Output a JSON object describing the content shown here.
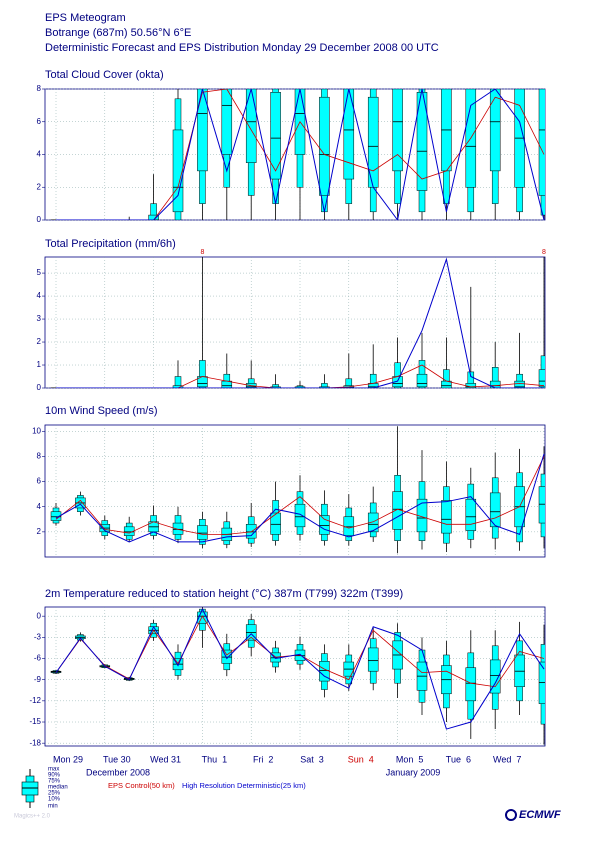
{
  "header": {
    "title": "EPS Meteogram",
    "location": "Botrange (687m) 50.56°N 6°E",
    "subtitle": "Deterministic Forecast and EPS Distribution Monday 29 December 2008 00 UTC"
  },
  "chart_data": [
    {
      "type": "boxplot",
      "title": "Total Cloud Cover (okta)",
      "ylim": [
        0,
        8
      ],
      "yticks": [
        0,
        2,
        4,
        6,
        8
      ],
      "grid": true,
      "boxes": [
        [
          0,
          0,
          0,
          0,
          0,
          0,
          0
        ],
        [
          0,
          0,
          0,
          0,
          0,
          0,
          0
        ],
        [
          0,
          0,
          0,
          0,
          0,
          0,
          0
        ],
        [
          0,
          0,
          0,
          0,
          0,
          0,
          0.2
        ],
        [
          0,
          0,
          0,
          0,
          0.3,
          1,
          2.8
        ],
        [
          0,
          0,
          0.5,
          2,
          5.5,
          7.4,
          8
        ],
        [
          0,
          1,
          3,
          6.5,
          8,
          8,
          8
        ],
        [
          0,
          2,
          4,
          7,
          8,
          8,
          8
        ],
        [
          0,
          1.5,
          3.5,
          6,
          8,
          8,
          8
        ],
        [
          0,
          1,
          2.5,
          5,
          7.8,
          8,
          8
        ],
        [
          0,
          2,
          4,
          6.5,
          8,
          8,
          8
        ],
        [
          0,
          0.5,
          1.5,
          4,
          7.5,
          8,
          8
        ],
        [
          0,
          1,
          2.5,
          5.5,
          8,
          8,
          8
        ],
        [
          0,
          0.5,
          2,
          4.5,
          7.5,
          8,
          8
        ],
        [
          0,
          1,
          3,
          6,
          8,
          8,
          8
        ],
        [
          0,
          0.5,
          1.8,
          4.2,
          7.8,
          8,
          8
        ],
        [
          0,
          1,
          3,
          5.5,
          8,
          8,
          8
        ],
        [
          0,
          0.5,
          2,
          4.5,
          8,
          8,
          8
        ],
        [
          0,
          1,
          3,
          6,
          8,
          8,
          8
        ],
        [
          0,
          0.5,
          2,
          5,
          8,
          8,
          8
        ],
        [
          0,
          0.3,
          1.5,
          5.5,
          8,
          8,
          8
        ]
      ],
      "control": [
        0,
        0,
        0,
        0,
        0,
        2,
        7.8,
        8,
        5.5,
        3,
        6,
        4,
        3.5,
        3,
        4,
        2.5,
        3,
        5,
        7.5,
        7,
        4
      ],
      "hres": [
        0,
        0,
        0,
        0,
        0,
        1.5,
        8,
        3,
        8,
        1,
        8,
        0.5,
        8,
        2,
        0,
        8,
        0.5,
        7,
        8,
        6,
        0
      ]
    },
    {
      "type": "boxplot",
      "title": "Total Precipitation (mm/6h)",
      "ylim": [
        0,
        5.7
      ],
      "yticks": [
        0,
        1,
        2,
        3,
        4,
        5
      ],
      "grid": true,
      "boxes": [
        [
          0,
          0,
          0,
          0,
          0,
          0,
          0
        ],
        [
          0,
          0,
          0,
          0,
          0,
          0,
          0
        ],
        [
          0,
          0,
          0,
          0,
          0,
          0,
          0
        ],
        [
          0,
          0,
          0,
          0,
          0,
          0,
          0
        ],
        [
          0,
          0,
          0,
          0,
          0,
          0,
          0
        ],
        [
          0,
          0,
          0,
          0,
          0.1,
          0.5,
          1.2
        ],
        [
          0,
          0,
          0.05,
          0.2,
          0.5,
          1.2,
          8
        ],
        [
          0,
          0,
          0,
          0.1,
          0.3,
          0.6,
          1.5
        ],
        [
          0,
          0,
          0,
          0.05,
          0.2,
          0.4,
          1.2
        ],
        [
          0,
          0,
          0,
          0,
          0.05,
          0.15,
          0.6
        ],
        [
          0,
          0,
          0,
          0,
          0.05,
          0.1,
          0.3
        ],
        [
          0,
          0,
          0,
          0,
          0.05,
          0.2,
          0.6
        ],
        [
          0,
          0,
          0,
          0.02,
          0.1,
          0.4,
          1.5
        ],
        [
          0,
          0,
          0,
          0.05,
          0.2,
          0.6,
          1.9
        ],
        [
          0,
          0,
          0.05,
          0.2,
          0.5,
          1.1,
          2.2
        ],
        [
          0,
          0,
          0.05,
          0.2,
          0.6,
          1.2,
          2.4
        ],
        [
          0,
          0,
          0,
          0.1,
          0.3,
          0.8,
          2.2
        ],
        [
          0,
          0,
          0,
          0.05,
          0.2,
          0.7,
          4.4
        ],
        [
          0,
          0,
          0,
          0.1,
          0.3,
          0.9,
          2
        ],
        [
          0,
          0,
          0,
          0.05,
          0.3,
          0.6,
          2.4
        ],
        [
          0,
          0,
          0.05,
          0.3,
          0.8,
          1.4,
          8
        ]
      ],
      "control": [
        0,
        0,
        0,
        0,
        0,
        0,
        0.5,
        0.3,
        0.1,
        0,
        0,
        0,
        0.05,
        0.2,
        0.5,
        1,
        0.3,
        0.05,
        0.1,
        0.2,
        0.1
      ],
      "hres": [
        0,
        0,
        0,
        0,
        0,
        0,
        0,
        0,
        0,
        0,
        0,
        0,
        0,
        0,
        0.3,
        2.5,
        5.6,
        0.5,
        0,
        0,
        0
      ]
    },
    {
      "type": "boxplot",
      "title": "10m Wind Speed (m/s)",
      "ylim": [
        0,
        10.5
      ],
      "yticks": [
        2,
        4,
        6,
        8,
        10
      ],
      "grid": true,
      "boxes": [
        [
          2.5,
          2.7,
          2.9,
          3.2,
          3.6,
          3.9,
          4.3
        ],
        [
          3.3,
          3.6,
          3.9,
          4.3,
          4.7,
          4.9,
          5.2
        ],
        [
          1.4,
          1.7,
          2,
          2.3,
          2.6,
          2.9,
          3.3
        ],
        [
          1.2,
          1.4,
          1.7,
          2,
          2.4,
          2.7,
          3.2
        ],
        [
          1.4,
          1.7,
          2,
          2.4,
          2.8,
          3.3,
          4.1
        ],
        [
          1.1,
          1.4,
          1.8,
          2.2,
          2.7,
          3.3,
          4
        ],
        [
          0.7,
          1,
          1.4,
          1.9,
          2.5,
          3,
          3.6
        ],
        [
          0.7,
          1,
          1.3,
          1.8,
          2.3,
          2.8,
          3.6
        ],
        [
          0.8,
          1.1,
          1.5,
          2,
          2.6,
          3.2,
          4.3
        ],
        [
          0.9,
          1.3,
          1.8,
          2.6,
          3.5,
          4.5,
          6
        ],
        [
          1.3,
          1.8,
          2.4,
          3.2,
          4.2,
          5.2,
          6.5
        ],
        [
          0.9,
          1.3,
          1.8,
          2.5,
          3.3,
          4.2,
          5.3
        ],
        [
          0.9,
          1.3,
          1.7,
          2.4,
          3.2,
          3.9,
          5
        ],
        [
          1.2,
          1.6,
          2,
          2.6,
          3.5,
          4.3,
          5.6
        ],
        [
          0.3,
          1.3,
          2.2,
          3.8,
          5.2,
          6.5,
          10.4
        ],
        [
          0.6,
          1.3,
          2,
          3.1,
          4.6,
          6,
          8.5
        ],
        [
          0.4,
          1.1,
          1.9,
          3,
          4.5,
          5.6,
          7.6
        ],
        [
          0.7,
          1.4,
          2.1,
          3.2,
          4.6,
          5.8,
          7.1
        ],
        [
          0.6,
          1.5,
          2.4,
          3.6,
          5.1,
          6.3,
          8.3
        ],
        [
          0.5,
          1.2,
          2.4,
          4,
          5.6,
          6.7,
          8.6
        ],
        [
          0.7,
          1.6,
          2.7,
          4.2,
          5.6,
          6.6,
          8.8
        ]
      ],
      "control": [
        3,
        4.5,
        2.2,
        1.9,
        2.8,
        2.2,
        1.8,
        1.8,
        2,
        3.4,
        4.8,
        3,
        2.3,
        2.8,
        3.8,
        3.2,
        2.6,
        2.6,
        3.1,
        4,
        8
      ],
      "hres": [
        3.1,
        4.2,
        2.1,
        1.2,
        2,
        1.2,
        1.2,
        1.6,
        1.7,
        3.8,
        3.4,
        2.2,
        1.6,
        2.1,
        3.2,
        4.3,
        4.4,
        4.8,
        2.5,
        1.8,
        8.2
      ]
    },
    {
      "type": "boxplot",
      "title": "2m Temperature reduced to station height (°C) 387m (T799) 322m (T399)",
      "ylim": [
        -18.4,
        1.3
      ],
      "yticks": [
        0,
        -3,
        -6,
        -9,
        -12,
        -15,
        -18
      ],
      "grid": true,
      "boxes": [
        [
          -8.2,
          -8.1,
          -8,
          -7.9,
          -7.8,
          -7.7,
          -7.6
        ],
        [
          -3.6,
          -3.4,
          -3.2,
          -3,
          -2.8,
          -2.6,
          -2.3
        ],
        [
          -7.4,
          -7.3,
          -7.2,
          -7.1,
          -7,
          -6.9,
          -6.8
        ],
        [
          -9.2,
          -9.1,
          -9,
          -8.9,
          -8.8,
          -8.7,
          -8.6
        ],
        [
          -3.5,
          -3,
          -2.5,
          -2,
          -1.5,
          -1,
          -0.5
        ],
        [
          -9,
          -8.4,
          -7.6,
          -6.8,
          -6,
          -5.1,
          -4
        ],
        [
          -4.5,
          -2,
          -1,
          0,
          0.6,
          1,
          1.3
        ],
        [
          -8.5,
          -7.6,
          -6.7,
          -5.8,
          -4.8,
          -3.9,
          -2.5
        ],
        [
          -5.7,
          -4.4,
          -3.4,
          -2.3,
          -1.2,
          -0.5,
          0.3
        ],
        [
          -8,
          -7.2,
          -6.5,
          -5.9,
          -5.2,
          -4.5,
          -3.5
        ],
        [
          -7.6,
          -6.8,
          -6.3,
          -5.6,
          -4.8,
          -4,
          -2.9
        ],
        [
          -11.5,
          -10.4,
          -9.2,
          -7.7,
          -6.4,
          -5.3,
          -4
        ],
        [
          -10.6,
          -9.6,
          -8.5,
          -7.5,
          -6.5,
          -5.5,
          -4
        ],
        [
          -10.5,
          -9.5,
          -7.8,
          -6.3,
          -4.5,
          -3.2,
          -1.5
        ],
        [
          -11.6,
          -9.5,
          -7.5,
          -5.5,
          -3.5,
          -2.3,
          -1
        ],
        [
          -14,
          -12.2,
          -10.5,
          -8.5,
          -6.5,
          -4.8,
          -3
        ],
        [
          -15,
          -13,
          -11,
          -9,
          -7,
          -5.5,
          -3.5
        ],
        [
          -17.4,
          -14.6,
          -12,
          -9.5,
          -7.3,
          -5.2,
          -2
        ],
        [
          -16,
          -13.2,
          -10.9,
          -8.4,
          -6.2,
          -4.2,
          -2
        ],
        [
          -14,
          -12,
          -10,
          -7.8,
          -5.5,
          -3.5,
          -0.8
        ],
        [
          -18.2,
          -15.3,
          -12.4,
          -9.4,
          -6.5,
          -4,
          -1.2
        ]
      ],
      "control": [
        -8,
        -3.2,
        -7,
        -8.9,
        -2,
        -6.7,
        0,
        -5.5,
        -3,
        -5.8,
        -5.5,
        -7.5,
        -9,
        -2,
        -5,
        -8,
        -7.8,
        -9.5,
        -10,
        -5,
        -6
      ],
      "hres": [
        -8,
        -3.1,
        -7.1,
        -9,
        -1.5,
        -7,
        1,
        -6,
        -2.5,
        -6,
        -5.4,
        -8.5,
        -10.2,
        -1.5,
        -2.7,
        -4.8,
        -16,
        -15,
        -9.5,
        -2.5,
        -7.5
      ]
    }
  ],
  "x_axis": {
    "day_labels": [
      {
        "label": "Mon 29",
        "color": "#000080"
      },
      {
        "label": "Tue 30",
        "color": "#000080"
      },
      {
        "label": "Wed 31",
        "color": "#000080"
      },
      {
        "label": "Thu  1",
        "color": "#000080"
      },
      {
        "label": "Fri  2",
        "color": "#000080"
      },
      {
        "label": "Sat  3",
        "color": "#000080"
      },
      {
        "label": "Sun  4",
        "color": "#cc0000"
      },
      {
        "label": "Mon  5",
        "color": "#000080"
      },
      {
        "label": "Tue  6",
        "color": "#000080"
      },
      {
        "label": "Wed  7",
        "color": "#000080"
      }
    ],
    "months": [
      "December 2008",
      "January 2009"
    ]
  },
  "legend": {
    "box_labels": [
      "max",
      "90%",
      "75%",
      "median",
      "25%",
      "10%",
      "min"
    ],
    "box_color": "#00ffff",
    "control": {
      "name": "EPS Control(50 km)",
      "color": "#cc0000"
    },
    "hres": {
      "name": "High Resolution Deterministic(25 km)",
      "color": "#0000cc"
    }
  },
  "footer": {
    "software": "Magics++ 2.0",
    "logo": "ECMWF"
  }
}
